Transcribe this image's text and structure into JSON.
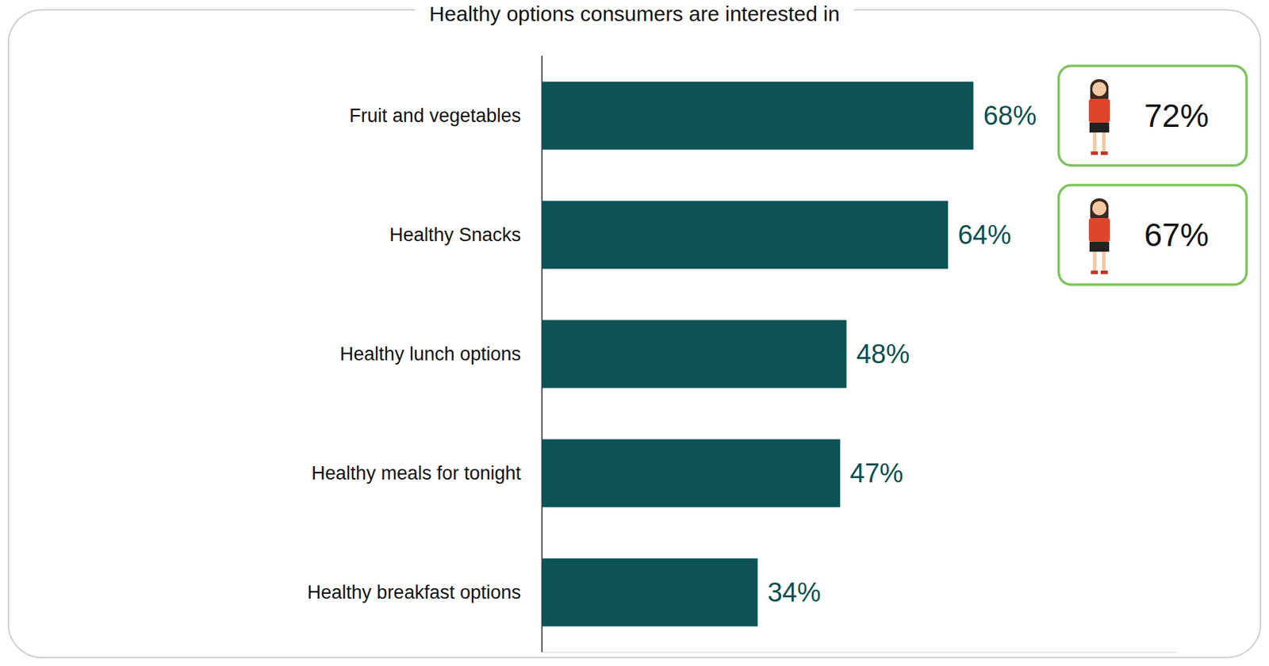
{
  "chart_data": {
    "type": "bar",
    "title": "Healthy options consumers are interested in",
    "orientation": "horizontal",
    "categories": [
      "Fruit and vegetables",
      "Healthy Snacks",
      "Healthy lunch options",
      "Healthy meals for tonight",
      "Healthy breakfast options"
    ],
    "values": [
      68,
      64,
      48,
      47,
      34
    ],
    "value_labels": [
      "68%",
      "64%",
      "48%",
      "47%",
      "34%"
    ],
    "color": "#0d5257",
    "xlim": [
      0,
      100
    ],
    "data_labels": true,
    "tick_labels": "y",
    "grid": false,
    "callouts": [
      {
        "category": "Fruit and vegetables",
        "value": 72,
        "label": "72%"
      },
      {
        "category": "Healthy Snacks",
        "value": 67,
        "label": "67%"
      }
    ]
  }
}
